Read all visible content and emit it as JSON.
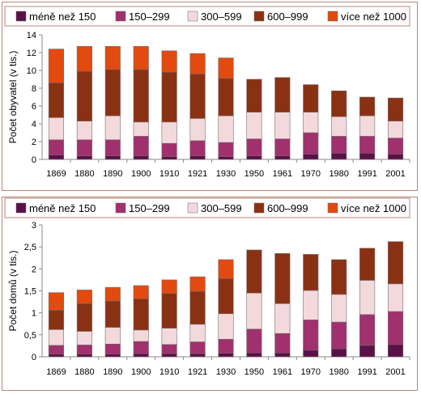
{
  "chart_data": [
    {
      "type": "bar",
      "stacked": true,
      "ylabel": "Počet obyvatel (v tis.)",
      "ylim": [
        0,
        14
      ],
      "yticks": [
        "0",
        "2",
        "4",
        "6",
        "8",
        "10",
        "12",
        "14"
      ],
      "grid": false,
      "legend_position": "top",
      "categories": [
        "1869",
        "1880",
        "1890",
        "1900",
        "1910",
        "1921",
        "1930",
        "1950",
        "1961",
        "1970",
        "1980",
        "1991",
        "2001"
      ],
      "series": [
        {
          "name": "méně než 150",
          "color": "#5a1048",
          "values": [
            0.5,
            0.4,
            0.4,
            0.4,
            0.3,
            0.4,
            0.3,
            0.4,
            0.4,
            0.6,
            0.7,
            0.7,
            0.6
          ]
        },
        {
          "name": "150–299",
          "color": "#a0306e",
          "values": [
            1.7,
            1.8,
            1.8,
            2.2,
            1.5,
            1.7,
            1.6,
            1.9,
            1.9,
            2.4,
            1.9,
            1.9,
            1.8
          ]
        },
        {
          "name": "300–599",
          "color": "#f3d9dc",
          "values": [
            2.5,
            2.1,
            2.7,
            1.6,
            2.4,
            2.5,
            3.0,
            3.0,
            3.0,
            2.3,
            2.2,
            2.3,
            1.9
          ]
        },
        {
          "name": "600–999",
          "color": "#8b3113",
          "values": [
            3.9,
            5.6,
            5.2,
            5.9,
            5.6,
            5.0,
            4.2,
            3.7,
            3.9,
            3.1,
            2.9,
            2.1,
            2.6
          ]
        },
        {
          "name": "více než 1000",
          "color": "#e34a0f",
          "values": [
            3.8,
            2.8,
            2.6,
            2.6,
            2.4,
            2.3,
            2.3,
            0,
            0,
            0,
            0,
            0,
            0
          ]
        }
      ]
    },
    {
      "type": "bar",
      "stacked": true,
      "ylabel": "Počet domů (v tis.)",
      "ylim": [
        0,
        3
      ],
      "yticks": [
        "0",
        "0,5",
        "1",
        "1,5",
        "2",
        "2,5",
        "3"
      ],
      "grid": false,
      "legend_position": "top",
      "categories": [
        "1869",
        "1880",
        "1890",
        "1900",
        "1910",
        "1921",
        "1930",
        "1950",
        "1961",
        "1970",
        "1980",
        "1991",
        "2001"
      ],
      "series": [
        {
          "name": "méně než 150",
          "color": "#5a1048",
          "values": [
            0.06,
            0.06,
            0.06,
            0.07,
            0.07,
            0.07,
            0.08,
            0.09,
            0.09,
            0.15,
            0.18,
            0.26,
            0.28
          ]
        },
        {
          "name": "150–299",
          "color": "#a0306e",
          "values": [
            0.2,
            0.21,
            0.23,
            0.28,
            0.21,
            0.27,
            0.32,
            0.54,
            0.44,
            0.69,
            0.61,
            0.7,
            0.75
          ]
        },
        {
          "name": "300–599",
          "color": "#f3d9dc",
          "values": [
            0.36,
            0.31,
            0.38,
            0.26,
            0.37,
            0.4,
            0.58,
            0.82,
            0.68,
            0.67,
            0.63,
            0.78,
            0.63
          ]
        },
        {
          "name": "600–999",
          "color": "#8b3113",
          "values": [
            0.44,
            0.63,
            0.6,
            0.71,
            0.79,
            0.75,
            0.8,
            0.98,
            1.14,
            0.82,
            0.79,
            0.73,
            0.96
          ]
        },
        {
          "name": "více než 1000",
          "color": "#e34a0f",
          "values": [
            0.4,
            0.31,
            0.31,
            0.3,
            0.31,
            0.33,
            0.43,
            0,
            0,
            0,
            0,
            0,
            0
          ]
        }
      ]
    }
  ]
}
